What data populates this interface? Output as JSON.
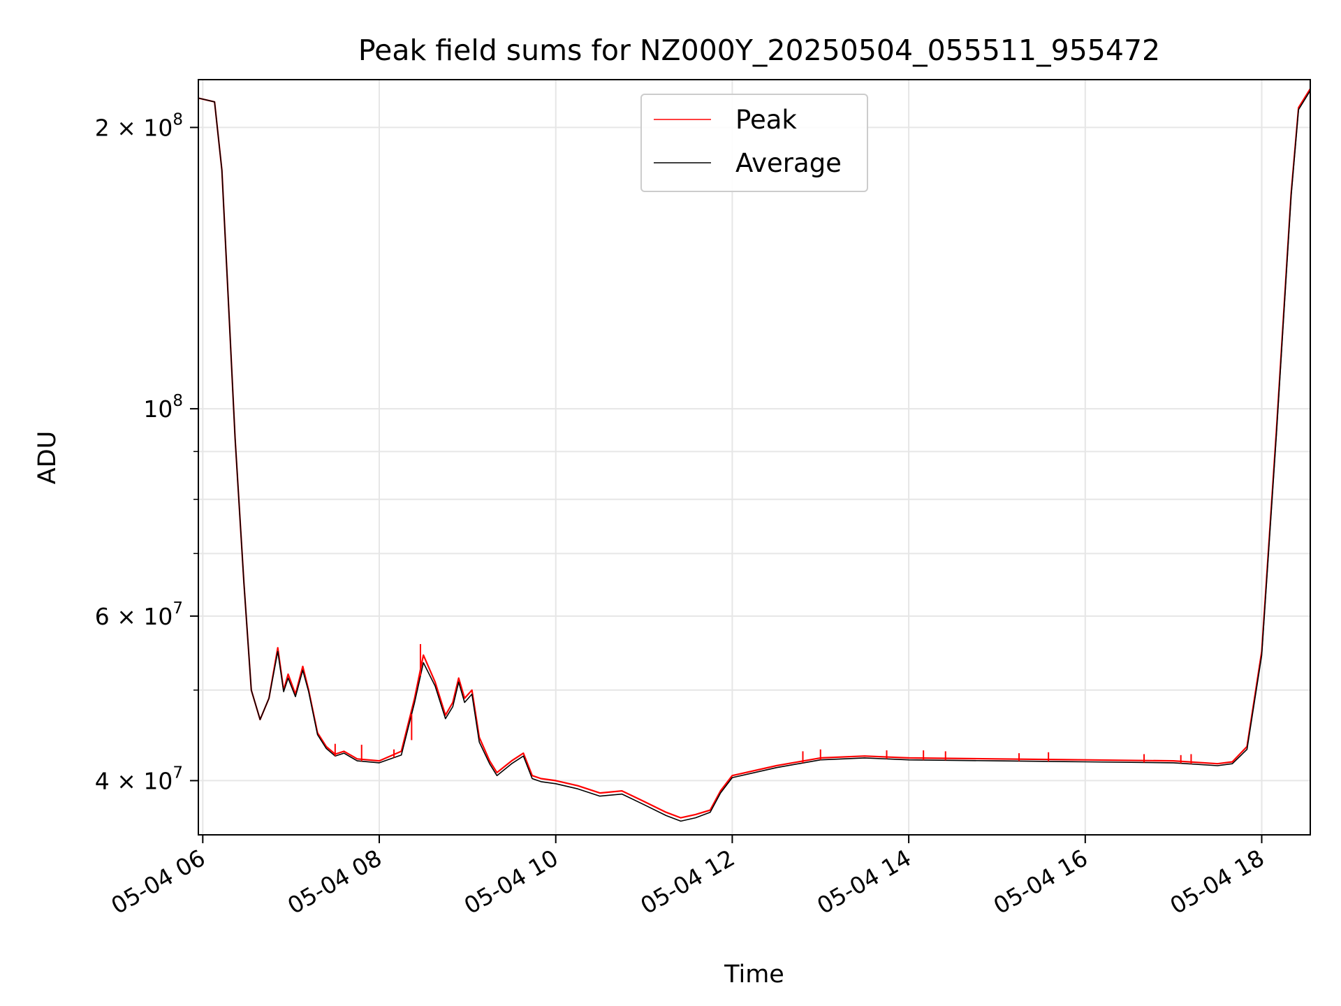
{
  "chart_data": {
    "type": "line",
    "title": "Peak field sums for NZ000Y_20250504_055511_955472",
    "xlabel": "Time",
    "ylabel": "ADU",
    "y_scale": "log",
    "ylim": [
      35000000,
      225000000
    ],
    "xlim": [
      "05-04 05:57",
      "05-04 18:33"
    ],
    "x_ticks": [
      "05-04 06",
      "05-04 08",
      "05-04 10",
      "05-04 12",
      "05-04 14",
      "05-04 16",
      "05-04 18"
    ],
    "y_ticks": [
      {
        "value": 200000000,
        "label": "2 × 10^8",
        "mantissa": "2 × 10",
        "exp": "8"
      },
      {
        "value": 100000000,
        "label": "10^8",
        "mantissa": "10",
        "exp": "8"
      },
      {
        "value": 60000000,
        "label": "6 × 10^7",
        "mantissa": "6 × 10",
        "exp": "7"
      },
      {
        "value": 40000000,
        "label": "4 × 10^7",
        "mantissa": "4 × 10",
        "exp": "7"
      }
    ],
    "grid": true,
    "legend_position": "top-center",
    "series": [
      {
        "name": "Peak",
        "color": "#ff0000",
        "x": [
          "05:57",
          "06:08",
          "06:13",
          "06:18",
          "06:22",
          "06:28",
          "06:33",
          "06:39",
          "06:45",
          "06:51",
          "06:55",
          "06:58",
          "07:03",
          "07:08",
          "07:12",
          "07:18",
          "07:24",
          "07:30",
          "07:36",
          "07:45",
          "08:00",
          "08:15",
          "08:24",
          "08:30",
          "08:38",
          "08:45",
          "08:50",
          "08:54",
          "08:58",
          "09:03",
          "09:08",
          "09:15",
          "09:20",
          "09:30",
          "09:38",
          "09:44",
          "09:50",
          "10:00",
          "10:15",
          "10:30",
          "10:45",
          "11:00",
          "11:15",
          "11:25",
          "11:35",
          "11:45",
          "11:52",
          "12:00",
          "12:30",
          "13:00",
          "13:30",
          "14:00",
          "15:00",
          "16:00",
          "17:00",
          "17:30",
          "17:40",
          "17:50",
          "18:00",
          "18:10",
          "18:20",
          "18:25",
          "18:33"
        ],
        "y": [
          215000000,
          213000000,
          180000000,
          125000000,
          93000000,
          65000000,
          50000000,
          46500000,
          49000000,
          55500000,
          50000000,
          52000000,
          49500000,
          53000000,
          50000000,
          45000000,
          43500000,
          42700000,
          43000000,
          42200000,
          42000000,
          43000000,
          49000000,
          54500000,
          51000000,
          47000000,
          48500000,
          51500000,
          49000000,
          50000000,
          44500000,
          42000000,
          40800000,
          42000000,
          42800000,
          40500000,
          40200000,
          40000000,
          39500000,
          38800000,
          39000000,
          38000000,
          37000000,
          36500000,
          36800000,
          37200000,
          39000000,
          40500000,
          41500000,
          42300000,
          42500000,
          42300000,
          42200000,
          42100000,
          42000000,
          41700000,
          41900000,
          43500000,
          55000000,
          95000000,
          170000000,
          210000000,
          220000000
        ]
      },
      {
        "name": "Average",
        "color": "#000000",
        "x": [
          "05:57",
          "06:08",
          "06:13",
          "06:18",
          "06:22",
          "06:28",
          "06:33",
          "06:39",
          "06:45",
          "06:51",
          "06:55",
          "06:58",
          "07:03",
          "07:08",
          "07:12",
          "07:18",
          "07:24",
          "07:30",
          "07:36",
          "07:45",
          "08:00",
          "08:15",
          "08:24",
          "08:30",
          "08:38",
          "08:45",
          "08:50",
          "08:54",
          "08:58",
          "09:03",
          "09:08",
          "09:15",
          "09:20",
          "09:30",
          "09:38",
          "09:44",
          "09:50",
          "10:00",
          "10:15",
          "10:30",
          "10:45",
          "11:00",
          "11:15",
          "11:25",
          "11:35",
          "11:45",
          "11:52",
          "12:00",
          "12:30",
          "13:00",
          "13:30",
          "14:00",
          "15:00",
          "16:00",
          "17:00",
          "17:30",
          "17:40",
          "17:50",
          "18:00",
          "18:10",
          "18:20",
          "18:25",
          "18:33"
        ],
        "y": [
          215000000,
          213000000,
          180000000,
          125000000,
          93000000,
          65000000,
          50000000,
          46500000,
          49000000,
          55000000,
          49800000,
          51500000,
          49200000,
          52500000,
          49800000,
          44800000,
          43300000,
          42500000,
          42800000,
          42000000,
          41800000,
          42600000,
          48500000,
          53500000,
          50500000,
          46600000,
          48000000,
          51000000,
          48500000,
          49500000,
          44000000,
          41700000,
          40500000,
          41700000,
          42500000,
          40200000,
          39900000,
          39700000,
          39200000,
          38500000,
          38700000,
          37700000,
          36700000,
          36200000,
          36500000,
          37000000,
          38800000,
          40300000,
          41300000,
          42100000,
          42300000,
          42100000,
          42000000,
          41900000,
          41800000,
          41500000,
          41700000,
          43200000,
          54500000,
          94000000,
          169000000,
          209000000,
          219000000
        ]
      }
    ],
    "peak_spikes": [
      {
        "x": "07:30",
        "y": 43800000
      },
      {
        "x": "07:48",
        "y": 43700000
      },
      {
        "x": "08:10",
        "y": 43200000
      },
      {
        "x": "08:22",
        "y": 44200000
      },
      {
        "x": "08:28",
        "y": 56000000
      },
      {
        "x": "12:48",
        "y": 43000000
      },
      {
        "x": "13:00",
        "y": 43200000
      },
      {
        "x": "13:45",
        "y": 43100000
      },
      {
        "x": "14:10",
        "y": 43100000
      },
      {
        "x": "14:25",
        "y": 43000000
      },
      {
        "x": "15:15",
        "y": 42800000
      },
      {
        "x": "15:35",
        "y": 42900000
      },
      {
        "x": "16:40",
        "y": 42700000
      },
      {
        "x": "17:05",
        "y": 42600000
      },
      {
        "x": "17:12",
        "y": 42700000
      }
    ],
    "legend": {
      "entries": [
        "Peak",
        "Average"
      ]
    }
  }
}
